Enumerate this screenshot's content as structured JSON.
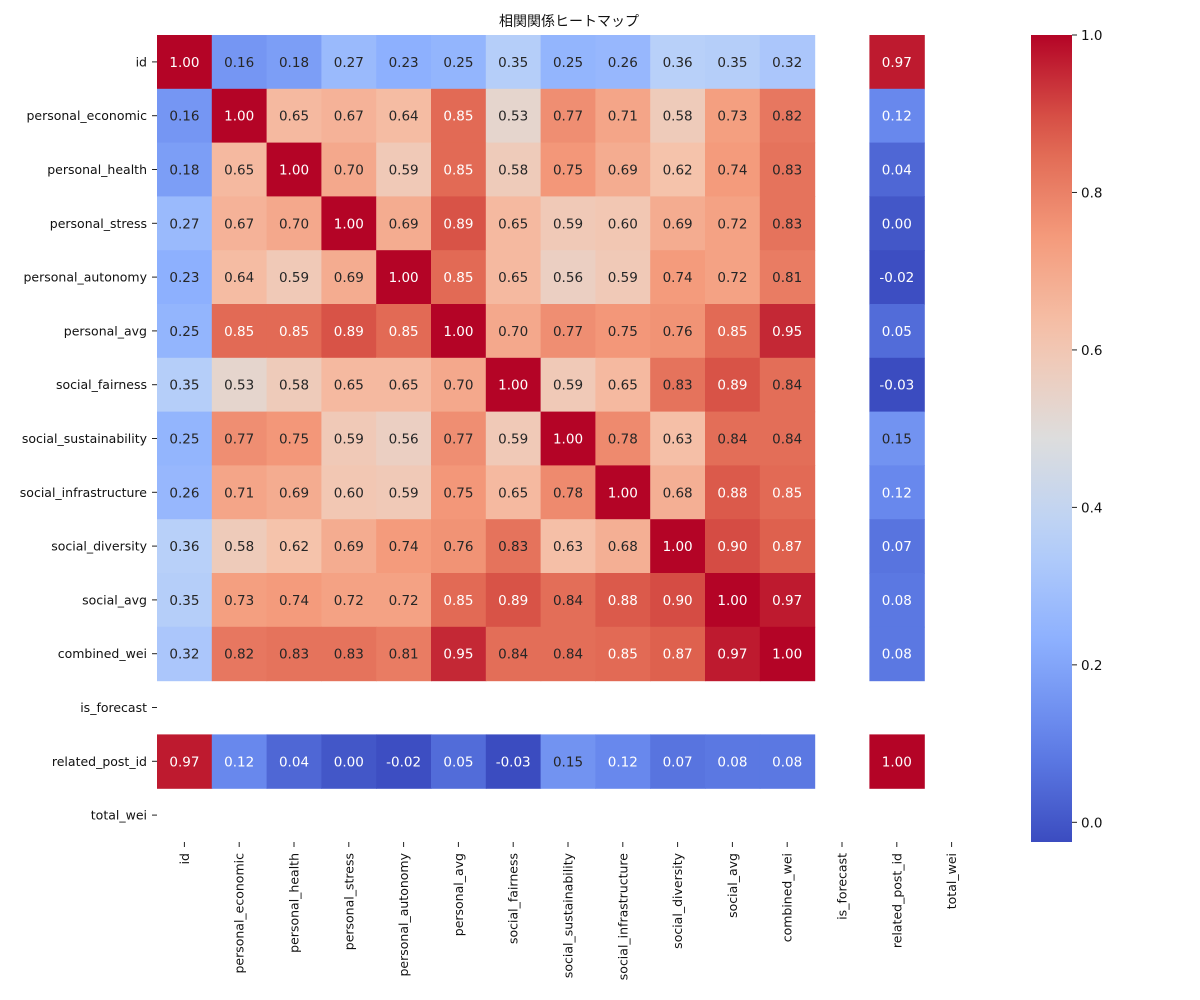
{
  "chart_data": {
    "type": "heatmap",
    "title": "相関関係ヒートマップ",
    "colormap": "coolwarm",
    "vmin": -0.025,
    "vmax": 1.0,
    "labels": [
      "id",
      "personal_economic",
      "personal_health",
      "personal_stress",
      "personal_autonomy",
      "personal_avg",
      "social_fairness",
      "social_sustainability",
      "social_infrastructure",
      "social_diversity",
      "social_avg",
      "combined_wei",
      "is_forecast",
      "related_post_id",
      "total_wei"
    ],
    "matrix": [
      [
        1.0,
        0.16,
        0.18,
        0.27,
        0.23,
        0.25,
        0.35,
        0.25,
        0.26,
        0.36,
        0.35,
        0.32,
        null,
        0.97,
        null
      ],
      [
        0.16,
        1.0,
        0.65,
        0.67,
        0.64,
        0.85,
        0.53,
        0.77,
        0.71,
        0.58,
        0.73,
        0.82,
        null,
        0.12,
        null
      ],
      [
        0.18,
        0.65,
        1.0,
        0.7,
        0.59,
        0.85,
        0.58,
        0.75,
        0.69,
        0.62,
        0.74,
        0.83,
        null,
        0.04,
        null
      ],
      [
        0.27,
        0.67,
        0.7,
        1.0,
        0.69,
        0.89,
        0.65,
        0.59,
        0.6,
        0.69,
        0.72,
        0.83,
        null,
        0.0,
        null
      ],
      [
        0.23,
        0.64,
        0.59,
        0.69,
        1.0,
        0.85,
        0.65,
        0.56,
        0.59,
        0.74,
        0.72,
        0.81,
        null,
        -0.02,
        null
      ],
      [
        0.25,
        0.85,
        0.85,
        0.89,
        0.85,
        1.0,
        0.7,
        0.77,
        0.75,
        0.76,
        0.85,
        0.95,
        null,
        0.05,
        null
      ],
      [
        0.35,
        0.53,
        0.58,
        0.65,
        0.65,
        0.7,
        1.0,
        0.59,
        0.65,
        0.83,
        0.89,
        0.84,
        null,
        -0.03,
        null
      ],
      [
        0.25,
        0.77,
        0.75,
        0.59,
        0.56,
        0.77,
        0.59,
        1.0,
        0.78,
        0.63,
        0.84,
        0.84,
        null,
        0.15,
        null
      ],
      [
        0.26,
        0.71,
        0.69,
        0.6,
        0.59,
        0.75,
        0.65,
        0.78,
        1.0,
        0.68,
        0.88,
        0.85,
        null,
        0.12,
        null
      ],
      [
        0.36,
        0.58,
        0.62,
        0.69,
        0.74,
        0.76,
        0.83,
        0.63,
        0.68,
        1.0,
        0.9,
        0.87,
        null,
        0.07,
        null
      ],
      [
        0.35,
        0.73,
        0.74,
        0.72,
        0.72,
        0.85,
        0.89,
        0.84,
        0.88,
        0.9,
        1.0,
        0.97,
        null,
        0.08,
        null
      ],
      [
        0.32,
        0.82,
        0.83,
        0.83,
        0.81,
        0.95,
        0.84,
        0.84,
        0.85,
        0.87,
        0.97,
        1.0,
        null,
        0.08,
        null
      ],
      [
        null,
        null,
        null,
        null,
        null,
        null,
        null,
        null,
        null,
        null,
        null,
        null,
        null,
        null,
        null
      ],
      [
        0.97,
        0.12,
        0.04,
        0.0,
        -0.02,
        0.05,
        -0.03,
        0.15,
        0.12,
        0.07,
        0.08,
        0.08,
        null,
        1.0,
        null
      ],
      [
        null,
        null,
        null,
        null,
        null,
        null,
        null,
        null,
        null,
        null,
        null,
        null,
        null,
        null,
        null
      ]
    ],
    "colorbar_ticks": [
      "0.0",
      "0.2",
      "0.4",
      "0.6",
      "0.8",
      "1.0"
    ],
    "colorbar_tick_values": [
      0.0,
      0.2,
      0.4,
      0.6,
      0.8,
      1.0
    ],
    "annotation_format": "2 decimals",
    "grid": false
  }
}
